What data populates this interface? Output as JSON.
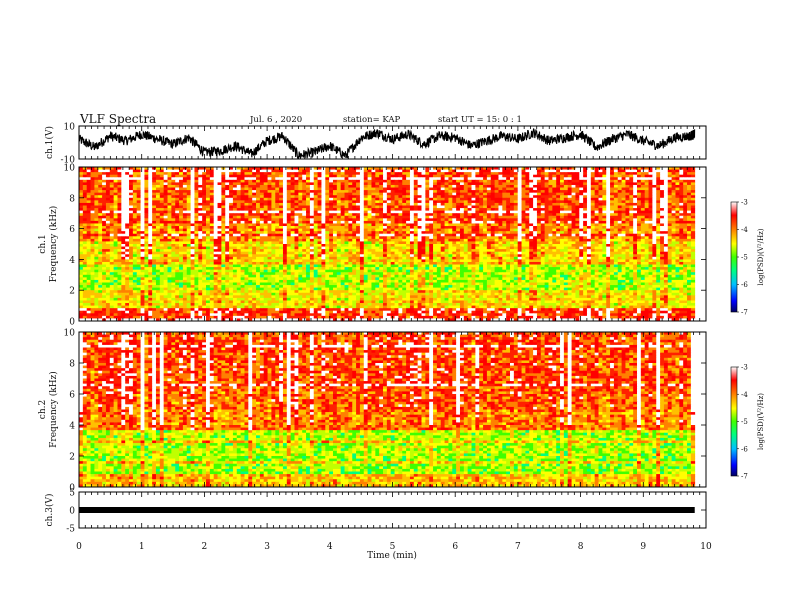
{
  "header": {
    "title": "VLF Spectra",
    "date": "Jul. 6 , 2020",
    "station": "station= KAP",
    "start_ut": "start UT = 15: 0 : 1"
  },
  "colors": {
    "axis": "#000000",
    "trace": "#000000",
    "colormap": [
      "#000080",
      "#0000ff",
      "#00a0ff",
      "#00ffff",
      "#00ff80",
      "#40ff00",
      "#c0ff00",
      "#ffff00",
      "#ffc000",
      "#ff8000",
      "#ff2000",
      "#ff0000",
      "#ffffff"
    ]
  },
  "chart_data": [
    {
      "type": "line",
      "id": "ch1-waveform",
      "ylabel": "ch.1(V)",
      "xlim": [
        0,
        10
      ],
      "ylim": [
        -10,
        10
      ],
      "ytick_labels": [
        "10",
        "-10"
      ],
      "series": [
        {
          "x": [
            0,
            0.25,
            0.5,
            0.75,
            1,
            1.25,
            1.5,
            1.75,
            2,
            2.25,
            2.5,
            2.75,
            3,
            3.25,
            3.5,
            3.75,
            4,
            4.25,
            4.5,
            4.75,
            5,
            5.25,
            5.5,
            5.75,
            6,
            6.25,
            6.5,
            6.75,
            7,
            7.25,
            7.5,
            7.75,
            8,
            8.25,
            8.5,
            8.75,
            9,
            9.25,
            9.5,
            9.75,
            9.82
          ],
          "values": [
            2,
            -3,
            4,
            1,
            5,
            2,
            -1,
            3,
            -6,
            -5,
            -2,
            -7,
            1,
            4,
            -8,
            -6,
            -2,
            -8,
            3,
            6,
            2,
            5,
            -1,
            4,
            3,
            -2,
            1,
            4,
            2,
            6,
            1,
            3,
            5,
            -3,
            2,
            5,
            1,
            -2,
            3,
            4,
            5
          ]
        }
      ]
    },
    {
      "type": "heatmap",
      "id": "ch1-spectrogram",
      "ylabel": "ch.1\nFrequency (kHz)",
      "xlim": [
        0,
        10
      ],
      "ylim": [
        0,
        10
      ],
      "data_x_end": 9.82,
      "ytick_labels": [
        "0",
        "2",
        "4",
        "6",
        "8",
        "10"
      ],
      "colorbar": {
        "label": "log(PSD)(V²/Hz)",
        "range": [
          -7,
          -3
        ],
        "tick_labels": [
          "-3",
          "-4",
          "-5",
          "-6",
          "-7"
        ]
      },
      "bands": [
        {
          "f_low": 0,
          "f_high": 0.8,
          "log_psd": -3.6
        },
        {
          "f_low": 0.8,
          "f_high": 2.0,
          "log_psd": -4.6
        },
        {
          "f_low": 2.0,
          "f_high": 3.8,
          "log_psd": -5.0
        },
        {
          "f_low": 3.8,
          "f_high": 5.2,
          "log_psd": -4.5
        },
        {
          "f_low": 5.2,
          "f_high": 6.5,
          "log_psd": -4.1
        },
        {
          "f_low": 6.5,
          "f_high": 10,
          "log_psd": -3.8
        }
      ]
    },
    {
      "type": "heatmap",
      "id": "ch2-spectrogram",
      "ylabel": "ch.2\nFrequency (kHz)",
      "xlim": [
        0,
        10
      ],
      "ylim": [
        0,
        10
      ],
      "data_x_end": 9.82,
      "ytick_labels": [
        "0",
        "2",
        "4",
        "6",
        "8",
        "10"
      ],
      "colorbar": {
        "label": "log(PSD)(V²/Hz)",
        "range": [
          -7,
          -3
        ],
        "tick_labels": [
          "-3",
          "-4",
          "-5",
          "-6",
          "-7"
        ]
      },
      "bands": [
        {
          "f_low": 0,
          "f_high": 0.8,
          "log_psd": -4.4
        },
        {
          "f_low": 0.8,
          "f_high": 2.0,
          "log_psd": -5.1
        },
        {
          "f_low": 2.0,
          "f_high": 3.6,
          "log_psd": -5.0
        },
        {
          "f_low": 3.6,
          "f_high": 5.0,
          "log_psd": -4.0
        },
        {
          "f_low": 5.0,
          "f_high": 6.5,
          "log_psd": -3.8
        },
        {
          "f_low": 6.5,
          "f_high": 10,
          "log_psd": -3.7
        }
      ]
    },
    {
      "type": "line",
      "id": "ch3-waveform",
      "ylabel": "ch.3(V)",
      "xlabel": "Time (min)",
      "xlim": [
        0,
        10
      ],
      "ylim": [
        -5,
        5
      ],
      "ytick_labels": [
        "5",
        "0",
        "-5"
      ],
      "xtick_labels": [
        "0",
        "1",
        "2",
        "3",
        "4",
        "5",
        "6",
        "7",
        "8",
        "9",
        "10"
      ],
      "series": [
        {
          "x": [
            0,
            9.82
          ],
          "values": [
            0,
            0
          ]
        }
      ]
    }
  ]
}
